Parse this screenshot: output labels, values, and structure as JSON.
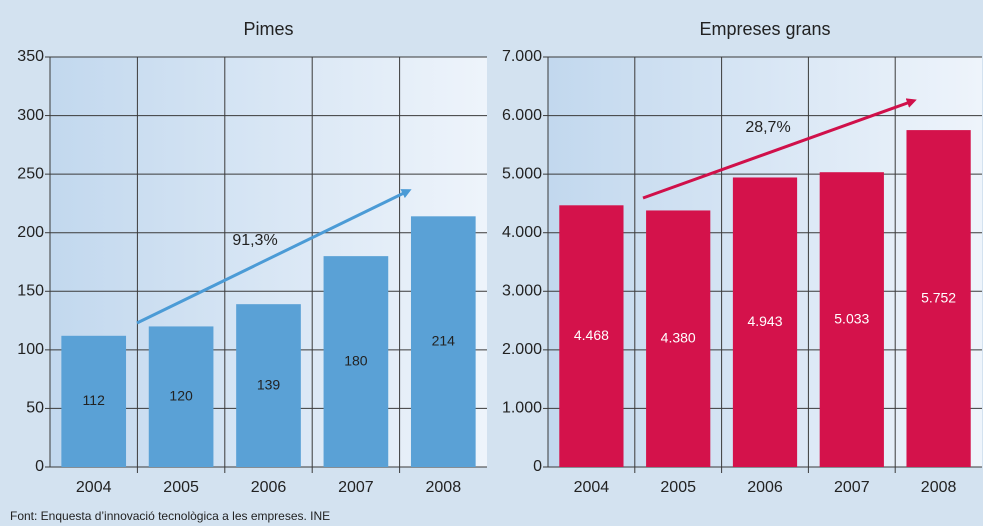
{
  "chart_data": [
    {
      "type": "bar",
      "title": "Pimes",
      "categories": [
        "2004",
        "2005",
        "2006",
        "2007",
        "2008"
      ],
      "values": [
        112,
        120,
        139,
        180,
        214
      ],
      "color": "#5aa1d6",
      "ylim": [
        0,
        350
      ],
      "yticks": [
        0,
        50,
        100,
        150,
        200,
        250,
        300,
        350
      ],
      "grid": true,
      "annotation": "91,3%"
    },
    {
      "type": "bar",
      "title": "Empreses grans",
      "categories": [
        "2004",
        "2005",
        "2006",
        "2007",
        "2008"
      ],
      "values": [
        4468,
        4380,
        4943,
        5033,
        5752
      ],
      "value_labels": [
        "4.468",
        "4.380",
        "4.943",
        "5.033",
        "5.752"
      ],
      "color": "#d4124b",
      "ylim": [
        0,
        7000
      ],
      "yticks": [
        0,
        {
          "value": 1000,
          "label": "1.000"
        },
        {
          "value": 2000,
          "label": "2.000"
        },
        {
          "value": 3000,
          "label": "3.000"
        },
        {
          "value": 4000,
          "label": "4.000"
        },
        {
          "value": 5000,
          "label": "5.000"
        },
        {
          "value": 6000,
          "label": "6.000"
        },
        {
          "value": 7000,
          "label": "7.000"
        }
      ],
      "grid": true,
      "annotation": "28,7%"
    }
  ],
  "source": "Font: Enquesta d’innovació tecnològica a les empreses. INE"
}
